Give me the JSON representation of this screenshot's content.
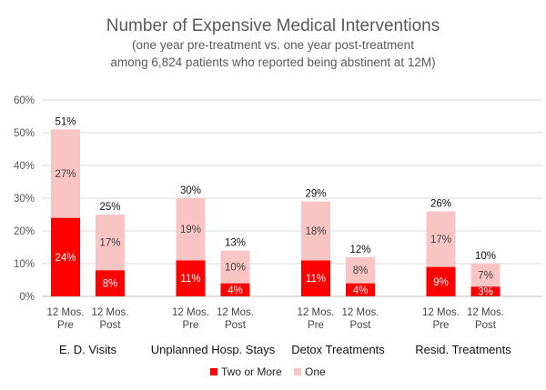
{
  "chart_data": {
    "type": "bar",
    "stacked": true,
    "title": "Number of Expensive Medical Interventions",
    "subtitle_lines": [
      "(one year pre-treatment vs. one year post-treatment",
      "among 6,824 patients who reported being abstinent at 12M)"
    ],
    "ylim": [
      0,
      60
    ],
    "yticks": [
      "0%",
      "10%",
      "20%",
      "30%",
      "40%",
      "50%",
      "60%"
    ],
    "y_values": [
      0,
      10,
      20,
      30,
      40,
      50,
      60
    ],
    "grid": true,
    "legend_position": "bottom",
    "groups": [
      {
        "name": "E. D. Visits",
        "bars": [
          {
            "line1": "12 Mos.",
            "line2": "Pre",
            "two_or_more": 24,
            "one": 27,
            "total": 51,
            "two_label": "24%",
            "one_label": "27%",
            "total_label": "51%"
          },
          {
            "line1": "12 Mos.",
            "line2": "Post",
            "two_or_more": 8,
            "one": 17,
            "total": 25,
            "two_label": "8%",
            "one_label": "17%",
            "total_label": "25%"
          }
        ]
      },
      {
        "name": "Unplanned Hosp. Stays",
        "bars": [
          {
            "line1": "12 Mos.",
            "line2": "Pre",
            "two_or_more": 11,
            "one": 19,
            "total": 30,
            "two_label": "11%",
            "one_label": "19%",
            "total_label": "30%"
          },
          {
            "line1": "12 Mos.",
            "line2": "Post",
            "two_or_more": 4,
            "one": 10,
            "total": 13,
            "two_label": "4%",
            "one_label": "10%",
            "total_label": "13%"
          }
        ]
      },
      {
        "name": "Detox Treatments",
        "bars": [
          {
            "line1": "12 Mos.",
            "line2": "Pre",
            "two_or_more": 11,
            "one": 18,
            "total": 29,
            "two_label": "11%",
            "one_label": "18%",
            "total_label": "29%"
          },
          {
            "line1": "12 Mos.",
            "line2": "Post",
            "two_or_more": 4,
            "one": 8,
            "total": 12,
            "two_label": "4%",
            "one_label": "8%",
            "total_label": "12%"
          }
        ]
      },
      {
        "name": "Resid.  Treatments",
        "bars": [
          {
            "line1": "12 Mos.",
            "line2": "Pre",
            "two_or_more": 9,
            "one": 17,
            "total": 26,
            "two_label": "9%",
            "one_label": "17%",
            "total_label": "26%"
          },
          {
            "line1": "12 Mos.",
            "line2": "Post",
            "two_or_more": 3,
            "one": 7,
            "total": 10,
            "two_label": "3%",
            "one_label": "7%",
            "total_label": "10%"
          }
        ]
      }
    ],
    "series": [
      {
        "key": "two_or_more",
        "name": "Two or More",
        "color": "#ff0000",
        "label_color": "#ffffff"
      },
      {
        "key": "one",
        "name": "One",
        "color": "#f8c4c4",
        "label_color": "#404040"
      }
    ]
  }
}
